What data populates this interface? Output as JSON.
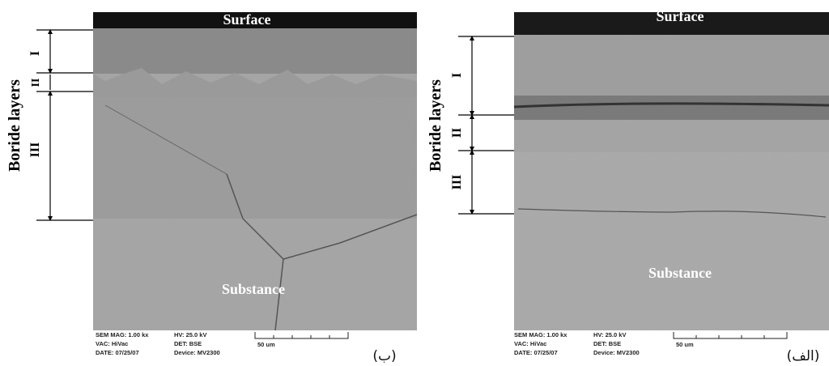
{
  "panels": [
    {
      "label": "(ب)",
      "surface": "Surface",
      "substance": "Substance",
      "side_label": "Boride layers",
      "layers": [
        "I",
        "II",
        "III"
      ],
      "info_left": [
        "SEM MAG: 1.00 kx",
        "VAC: HiVac",
        "DATE: 07/25/07"
      ],
      "info_right": [
        "HV:  25.0 kV",
        "DET: BSE",
        "Device: MV2300"
      ],
      "scale": "50 um"
    },
    {
      "label": "(الف)",
      "surface": "Surface",
      "substance": "Substance",
      "side_label": "Boride layers",
      "layers": [
        "I",
        "II",
        "III"
      ],
      "info_left": [
        "SEM MAG: 1.00 kx",
        "VAC: HiVac",
        "DATE: 07/25/07"
      ],
      "info_right": [
        "HV:  25.0 kV",
        "DET: BSE",
        "Device: MV2300"
      ],
      "scale": "50 um"
    }
  ]
}
